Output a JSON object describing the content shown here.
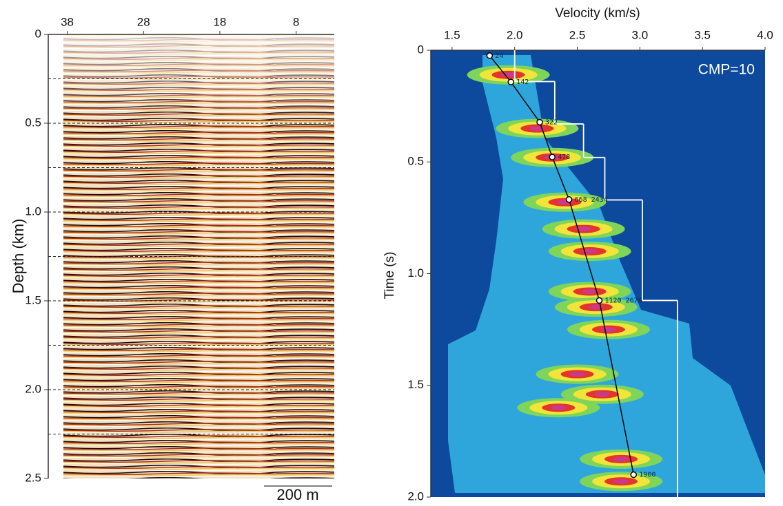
{
  "chart_data": [
    {
      "type": "seismic",
      "xlim": [
        38.5,
        3
      ],
      "xticks": [
        38,
        28,
        18,
        8
      ],
      "ylabel": "Depth (km)",
      "ylim": [
        0,
        2.5
      ],
      "yticks": [
        0,
        0.5,
        {
          "value": 1,
          "label": "1.0"
        },
        1.5,
        {
          "value": 2,
          "label": "2.0"
        },
        2.5
      ],
      "ygrid": [
        0.25,
        0.5,
        0.75,
        1,
        1.25,
        1.5,
        1.75,
        2,
        2.25
      ],
      "scale_bar": "200 m"
    },
    {
      "type": "semblance",
      "xlabel": "Velocity (km/s)",
      "ylabel": "Time (s)",
      "annotation": "CMP=10",
      "xlim": [
        1.33,
        4.0
      ],
      "xticks": [
        1.5,
        {
          "value": 2,
          "label": "2.0"
        },
        2.5,
        {
          "value": 3,
          "label": "3.0"
        },
        3.5,
        {
          "value": 4,
          "label": "4.0"
        }
      ],
      "ylim": [
        0,
        2
      ],
      "yticks": [
        0,
        0.5,
        {
          "value": 1,
          "label": "1.0"
        },
        1.5,
        {
          "value": 2,
          "label": "2.0"
        }
      ],
      "picks": {
        "x": [
          1.8,
          1.97,
          2.2,
          2.3,
          2.434,
          2.676,
          2.95
        ],
        "y": [
          0.024,
          0.142,
          0.322,
          0.478,
          0.668,
          1.12,
          1.9
        ],
        "value_labels": [
          "24",
          "142",
          "322",
          "478",
          "668 2434",
          "1120 2676",
          "1900"
        ]
      },
      "interval_velocity": {
        "bins": [
          0,
          0.14,
          0.33,
          0.48,
          0.67,
          1.12,
          2.0
        ],
        "values": [
          2.0,
          2.32,
          2.55,
          2.72,
          3.02,
          3.3
        ]
      },
      "semblance_peaks": {
        "x": [
          1.95,
          2.18,
          2.3,
          2.4,
          2.55,
          2.6,
          2.6,
          2.65,
          2.75,
          2.5,
          2.7,
          2.35,
          2.85,
          2.85
        ],
        "y": [
          0.11,
          0.35,
          0.48,
          0.68,
          0.8,
          0.9,
          1.08,
          1.15,
          1.25,
          1.45,
          1.54,
          1.6,
          1.83,
          1.93
        ]
      },
      "colors": [
        "#0d4a9e",
        "#35b6e6",
        "#7fd45a",
        "#f2e53a",
        "#e5342c",
        "#c93a8e"
      ]
    }
  ]
}
